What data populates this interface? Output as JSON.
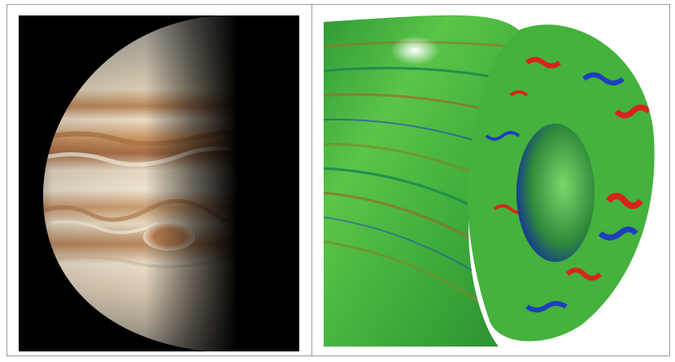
{
  "figure": {
    "panels": [
      {
        "id": "left",
        "subject": "jupiter-planet-photo",
        "background": "#000000"
      },
      {
        "id": "right",
        "subject": "torus-turbulence-simulation",
        "background": "#ffffff"
      }
    ],
    "colors": {
      "jupiter_band_light": "#e9dcc6",
      "jupiter_band_dark": "#b98559",
      "great_red_spot": "#c78a5a",
      "sim_green": "#3fae3b",
      "sim_red": "#d8241c",
      "sim_blue": "#1f3fbf"
    }
  }
}
